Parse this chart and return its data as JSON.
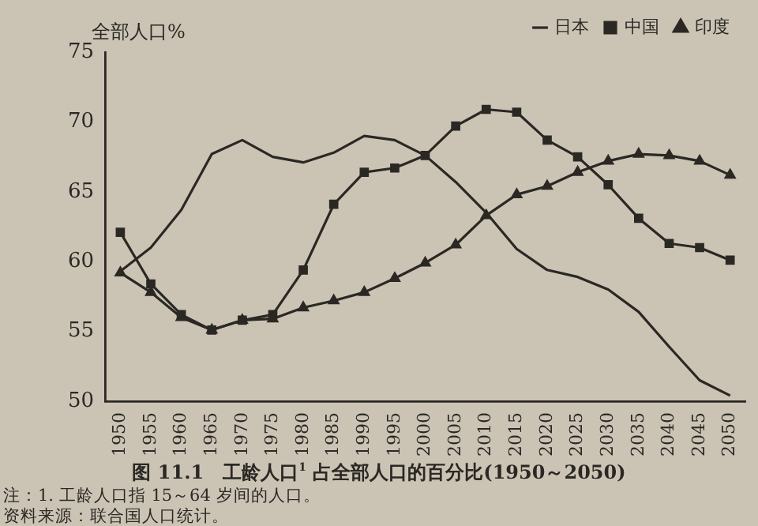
{
  "chart_data": {
    "type": "line",
    "title": "图 11.1　工龄人口$^{1}$ 占全部人口的百分比(1950～2050)",
    "ylabel": "全部人口%",
    "categories": [
      "1950",
      "1955",
      "1960",
      "1965",
      "1970",
      "1975",
      "1980",
      "1985",
      "1990",
      "1995",
      "2000",
      "2005",
      "2010",
      "2015",
      "2020",
      "2025",
      "2030",
      "2035",
      "2040",
      "2045",
      "2050"
    ],
    "series": [
      {
        "name": "日本",
        "color": "#2b2824",
        "marker": "none",
        "values": [
          59.3,
          61.0,
          63.7,
          67.7,
          68.7,
          67.5,
          67.1,
          67.8,
          69.0,
          68.7,
          67.6,
          65.7,
          63.5,
          60.9,
          59.4,
          58.9,
          58.0,
          56.4,
          53.9,
          51.5,
          50.4
        ]
      },
      {
        "name": "中国",
        "color": "#2b2824",
        "marker": "square",
        "values": [
          62.1,
          58.4,
          56.2,
          55.1,
          55.8,
          56.2,
          59.4,
          64.1,
          66.4,
          66.7,
          67.6,
          69.7,
          70.9,
          70.7,
          68.7,
          67.5,
          65.5,
          63.1,
          61.3,
          61.0,
          60.1
        ]
      },
      {
        "name": "印度",
        "color": "#2b2824",
        "marker": "triangle",
        "values": [
          59.2,
          57.8,
          56.0,
          55.1,
          55.8,
          55.9,
          56.7,
          57.2,
          57.8,
          58.8,
          59.9,
          61.2,
          63.3,
          64.8,
          65.4,
          66.4,
          67.2,
          67.7,
          67.6,
          67.2,
          66.2
        ]
      }
    ],
    "ylim": [
      50,
      75
    ],
    "yticks": [
      50,
      55,
      60,
      65,
      70,
      75
    ],
    "grid": false,
    "legend": "top right",
    "line_style": "solid",
    "annotations": [
      "注：1. 工龄人口指 15～64 岁间的人口。",
      "资料来源：联合国人口统计。"
    ]
  }
}
